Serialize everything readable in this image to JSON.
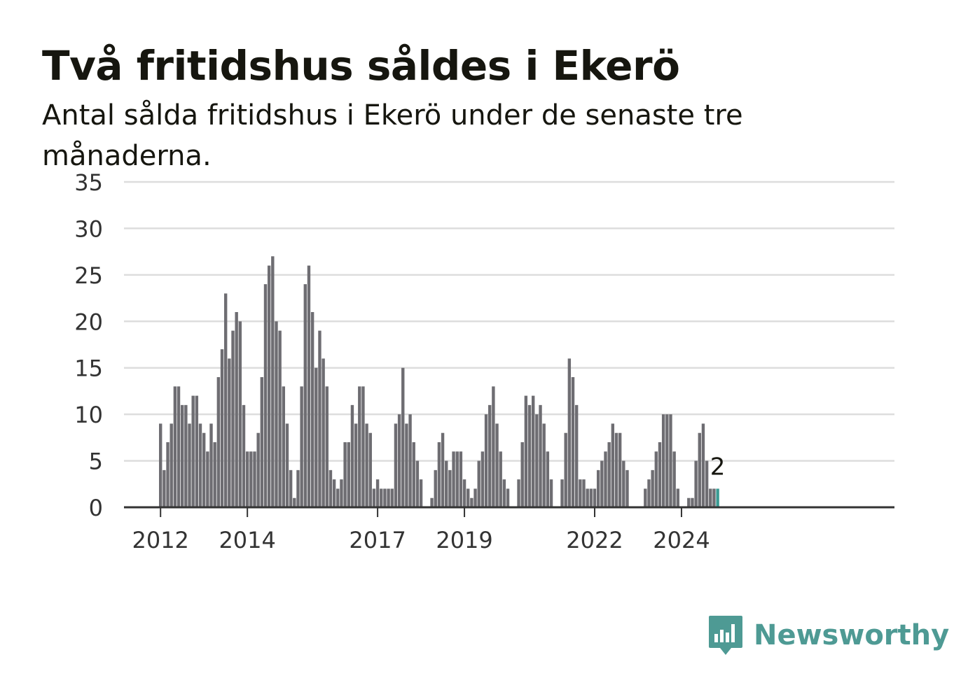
{
  "title": "Två fritidshus såldes i Ekerö",
  "subtitle": "Antal sålda fritidshus i Ekerö under de senaste tre månaderna.",
  "brand": {
    "name": "Newsworthy",
    "icon": "chart-speech-bubble-icon"
  },
  "colors": {
    "bar": "#6e6d72",
    "highlight": "#3a9b93",
    "grid": "#dddddd",
    "axis": "#333333",
    "brand": "#4e9a94"
  },
  "chart_data": {
    "type": "bar",
    "title": "Två fritidshus såldes i Ekerö",
    "xlabel": "",
    "ylabel": "",
    "ylim": [
      0,
      35
    ],
    "yticks": [
      "0",
      "5",
      "10",
      "15",
      "20",
      "25",
      "30",
      "35"
    ],
    "xticks": [
      "2012",
      "2014",
      "2017",
      "2019",
      "2022",
      "2024"
    ],
    "grid": true,
    "start_month": "2012-01",
    "values": [
      9,
      4,
      7,
      9,
      13,
      13,
      11,
      11,
      9,
      12,
      12,
      9,
      8,
      6,
      9,
      7,
      14,
      17,
      23,
      16,
      19,
      21,
      20,
      11,
      6,
      6,
      6,
      8,
      14,
      24,
      26,
      27,
      20,
      19,
      13,
      9,
      4,
      1,
      4,
      13,
      24,
      26,
      21,
      15,
      19,
      16,
      13,
      4,
      3,
      2,
      3,
      7,
      7,
      11,
      9,
      13,
      13,
      9,
      8,
      2,
      3,
      2,
      2,
      2,
      2,
      9,
      10,
      15,
      9,
      10,
      7,
      5,
      3,
      0,
      0,
      1,
      4,
      7,
      8,
      5,
      4,
      6,
      6,
      6,
      3,
      2,
      1,
      2,
      5,
      6,
      10,
      11,
      13,
      9,
      6,
      3,
      2,
      0,
      0,
      3,
      7,
      12,
      11,
      12,
      10,
      11,
      9,
      6,
      3,
      0,
      0,
      3,
      8,
      16,
      14,
      11,
      3,
      3,
      2,
      2,
      2,
      4,
      5,
      6,
      7,
      9,
      8,
      8,
      5,
      4,
      0,
      0,
      0,
      0,
      2,
      3,
      4,
      6,
      7,
      10,
      10,
      10,
      6,
      2,
      0,
      0,
      1,
      1,
      5,
      8,
      9,
      5,
      2,
      2,
      2
    ],
    "highlight": {
      "label": "2",
      "value": 2
    }
  }
}
